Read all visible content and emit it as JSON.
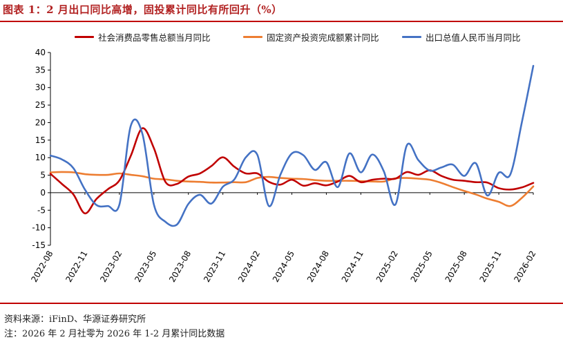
{
  "title": "图表 1：2 月出口同比高增，固投累计同比有所回升（%）",
  "source": "资料来源：iFinD、华源证券研究所",
  "note": "注：2026 年 2 月社零为 2026 年 1-2 月累计同比数据",
  "chart_data": {
    "type": "line",
    "ylim": [
      -15,
      40
    ],
    "yticks": [
      -15,
      -10,
      -5,
      0,
      5,
      10,
      15,
      20,
      25,
      30,
      35,
      40
    ],
    "x_range": [
      "2022-08",
      "2026-02"
    ],
    "x_tick_labels": [
      "2022-08",
      "2022-11",
      "2023-02",
      "2023-05",
      "2023-08",
      "2023-11",
      "2024-02",
      "2024-05",
      "2024-08",
      "2024-11",
      "2025-02",
      "2025-05",
      "2025-08",
      "2025-11",
      "2026-02"
    ],
    "x": [
      "2022-08",
      "2022-09",
      "2022-10",
      "2022-11",
      "2022-12",
      "2023-01",
      "2023-02",
      "2023-03",
      "2023-04",
      "2023-05",
      "2023-06",
      "2023-07",
      "2023-08",
      "2023-09",
      "2023-10",
      "2023-11",
      "2023-12",
      "2024-01",
      "2024-02",
      "2024-03",
      "2024-04",
      "2024-05",
      "2024-06",
      "2024-07",
      "2024-08",
      "2024-09",
      "2024-10",
      "2024-11",
      "2024-12",
      "2025-01",
      "2025-02",
      "2025-03",
      "2025-04",
      "2025-05",
      "2025-06",
      "2025-07",
      "2025-08",
      "2025-09",
      "2025-10",
      "2025-11",
      "2025-12",
      "2026-01",
      "2026-02"
    ],
    "series": [
      {
        "name": "社会消费品零售总额当月同比",
        "color": "#c00000",
        "values": [
          5.4,
          2.5,
          -0.5,
          -5.9,
          -1.8,
          1.0,
          3.5,
          10.6,
          18.4,
          12.7,
          3.1,
          2.5,
          4.6,
          5.5,
          7.6,
          10.1,
          7.4,
          5.5,
          5.5,
          3.1,
          2.3,
          3.7,
          2.0,
          2.7,
          2.1,
          3.2,
          4.8,
          3.0,
          3.7,
          4.0,
          4.0,
          5.9,
          5.1,
          6.4,
          4.8,
          3.7,
          3.4,
          3.0,
          2.9,
          1.3,
          0.9,
          1.5,
          2.8
        ]
      },
      {
        "name": "固定资产投资完成额累计同比",
        "color": "#ed7d31",
        "values": [
          5.8,
          5.9,
          5.8,
          5.3,
          5.1,
          5.1,
          5.5,
          5.1,
          4.7,
          4.0,
          3.8,
          3.4,
          3.2,
          3.1,
          2.9,
          2.9,
          3.0,
          3.0,
          4.2,
          4.5,
          4.2,
          4.0,
          3.9,
          3.6,
          3.4,
          3.4,
          3.4,
          3.3,
          3.2,
          3.2,
          4.1,
          4.2,
          4.0,
          3.7,
          2.8,
          1.6,
          0.5,
          -0.5,
          -1.7,
          -2.6,
          -3.8,
          -1.5,
          1.8
        ]
      },
      {
        "name": "出口总值人民币当月同比",
        "color": "#4472c4",
        "values": [
          10.6,
          9.5,
          7.0,
          0.9,
          -3.5,
          -3.8,
          -3.4,
          19.2,
          16.8,
          -3.4,
          -8.3,
          -9.1,
          -3.2,
          -0.6,
          -3.1,
          1.7,
          3.8,
          10.1,
          10.8,
          -3.8,
          5.1,
          11.2,
          10.7,
          6.5,
          8.7,
          1.6,
          11.2,
          5.8,
          10.9,
          6.1,
          -3.4,
          13.5,
          9.3,
          6.3,
          7.2,
          8.0,
          4.8,
          8.4,
          -0.8,
          5.7,
          5.2,
          20.0,
          36.2
        ]
      }
    ]
  }
}
